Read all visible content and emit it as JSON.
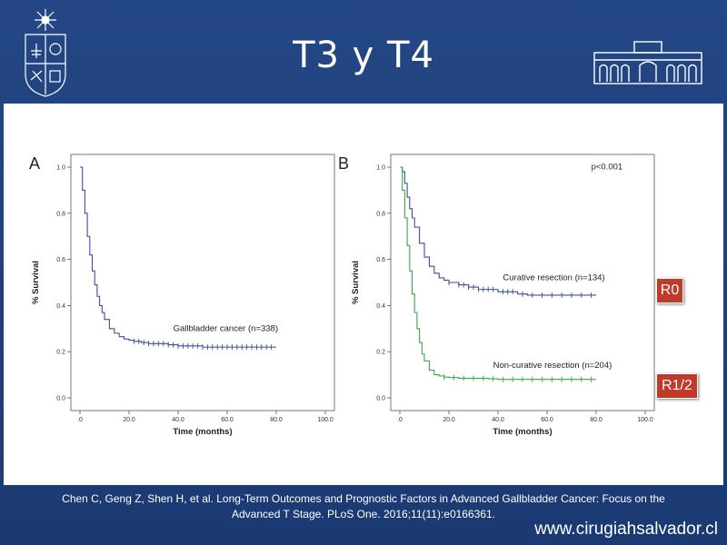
{
  "slide": {
    "title": "T3 y T4",
    "citation_line1": "Chen C, Geng Z, Shen H, et al. Long-Term Outcomes and Prognostic Factors in Advanced Gallbladder Cancer: Focus on the",
    "citation_line2": "Advanced T Stage. PLoS One. 2016;11(11):e0166361.",
    "website": "www.cirugiahsalvador.cl",
    "badge_r0": "R0",
    "badge_r12": "R1/2",
    "colors": {
      "background": "#1f3f7a",
      "badge": "#c0392b",
      "curve_blue": "#3b4fa0",
      "curve_green": "#3aa84a"
    },
    "logo_left": "university-crest-icon",
    "logo_right": "building-facade-icon"
  },
  "chart_data": [
    {
      "type": "line",
      "panel_label": "A",
      "xlabel": "Time (months)",
      "ylabel": "% Survival",
      "xlim": [
        0,
        100
      ],
      "ylim": [
        0,
        1
      ],
      "x_ticks": [
        0,
        20,
        40,
        60,
        80,
        100
      ],
      "x_tick_labels": [
        ".0",
        "20.0",
        "40.0",
        "60.0",
        "80.0",
        "100.0"
      ],
      "y_ticks": [
        0,
        0.2,
        0.4,
        0.6,
        0.8,
        1.0
      ],
      "y_tick_labels": [
        "0.0",
        "0.2",
        "0.4",
        "0.6",
        "0.8",
        "1.0"
      ],
      "annotations": [
        {
          "text": "Gallbladder cancer (n=338)"
        }
      ],
      "series": [
        {
          "name": "Gallbladder cancer (n=338)",
          "color": "#3b4fa0",
          "x": [
            0,
            1,
            2,
            3,
            4,
            5,
            6,
            7,
            8,
            9,
            10,
            12,
            14,
            16,
            18,
            20,
            22,
            25,
            28,
            32,
            36,
            40,
            45,
            50,
            55,
            60,
            65,
            70,
            75,
            80
          ],
          "y": [
            1.0,
            0.9,
            0.8,
            0.7,
            0.62,
            0.55,
            0.49,
            0.44,
            0.4,
            0.37,
            0.34,
            0.3,
            0.28,
            0.265,
            0.255,
            0.25,
            0.245,
            0.24,
            0.235,
            0.235,
            0.23,
            0.225,
            0.225,
            0.22,
            0.22,
            0.22,
            0.22,
            0.22,
            0.22,
            0.22
          ],
          "censor_x": [
            22,
            24,
            26,
            28,
            30,
            32,
            34,
            36,
            38,
            40,
            42,
            44,
            46,
            48,
            50,
            52,
            54,
            56,
            58,
            60,
            62,
            64,
            66,
            68,
            70,
            72,
            74,
            76,
            78
          ]
        }
      ]
    },
    {
      "type": "line",
      "panel_label": "B",
      "xlabel": "Time (months)",
      "ylabel": "% Survival",
      "xlim": [
        0,
        100
      ],
      "ylim": [
        0,
        1
      ],
      "x_ticks": [
        0,
        20,
        40,
        60,
        80,
        100
      ],
      "x_tick_labels": [
        ".0",
        "20.0",
        "40.0",
        "60.0",
        "80.0",
        "100.0"
      ],
      "y_ticks": [
        0,
        0.2,
        0.4,
        0.6,
        0.8,
        1.0
      ],
      "y_tick_labels": [
        "0.0",
        "0.2",
        "0.4",
        "0.6",
        "0.8",
        "1.0"
      ],
      "annotations": [
        {
          "text": "p<0.001"
        }
      ],
      "series": [
        {
          "name": "Curative resection (n=134)",
          "color": "#3b4fa0",
          "x": [
            0,
            1,
            2,
            3,
            4,
            5,
            6,
            8,
            10,
            12,
            14,
            16,
            18,
            20,
            24,
            28,
            32,
            36,
            40,
            44,
            48,
            52,
            56,
            60,
            65,
            70,
            75,
            80
          ],
          "y": [
            1.0,
            0.98,
            0.93,
            0.87,
            0.82,
            0.78,
            0.74,
            0.67,
            0.61,
            0.57,
            0.54,
            0.52,
            0.51,
            0.5,
            0.49,
            0.48,
            0.47,
            0.47,
            0.46,
            0.46,
            0.45,
            0.445,
            0.445,
            0.445,
            0.445,
            0.445,
            0.445,
            0.445
          ],
          "censor_x": [
            20,
            24,
            26,
            28,
            30,
            32,
            34,
            36,
            38,
            42,
            44,
            46,
            50,
            54,
            58,
            62,
            66,
            70,
            74,
            78
          ]
        },
        {
          "name": "Non-curative resection (n=204)",
          "color": "#3aa84a",
          "x": [
            0,
            1,
            2,
            3,
            4,
            5,
            6,
            7,
            8,
            9,
            10,
            12,
            14,
            16,
            18,
            20,
            24,
            28,
            32,
            36,
            40,
            50,
            60,
            70,
            80
          ],
          "y": [
            1.0,
            0.9,
            0.78,
            0.66,
            0.55,
            0.45,
            0.37,
            0.3,
            0.24,
            0.19,
            0.16,
            0.12,
            0.1,
            0.095,
            0.09,
            0.088,
            0.085,
            0.085,
            0.085,
            0.083,
            0.08,
            0.08,
            0.08,
            0.08,
            0.08
          ],
          "censor_x": [
            18,
            22,
            26,
            30,
            34,
            38,
            42,
            46,
            50,
            54,
            58,
            62,
            66,
            70,
            74,
            78
          ]
        }
      ],
      "series_labels": [
        "Curative resection (n=134)",
        "Non-curative resection (n=204)"
      ]
    }
  ]
}
